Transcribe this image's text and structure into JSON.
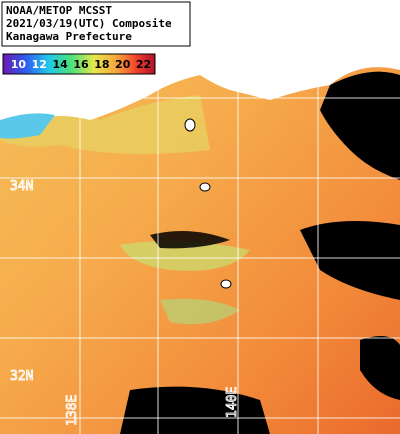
{
  "header": {
    "lines": [
      "NOAA/METOP MCSST",
      "2021/03/19(UTC) Composite",
      "Kanagawa Prefecture"
    ]
  },
  "colorbar": {
    "labels": [
      10,
      12,
      14,
      16,
      18,
      20,
      22
    ]
  },
  "grid_labels": {
    "lat": [
      "34N",
      "32N"
    ],
    "lon": [
      "138E",
      "140E"
    ]
  }
}
